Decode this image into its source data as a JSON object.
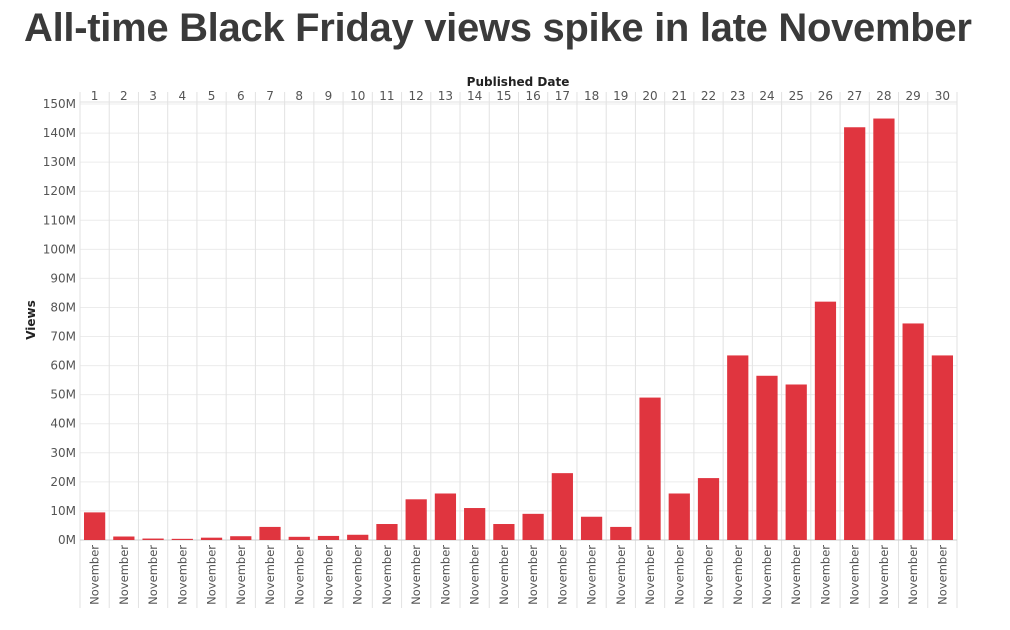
{
  "chart_data": {
    "type": "bar",
    "title": "All-time Black Friday views spike in late November",
    "xlabel": "Published Date",
    "ylabel": "Views",
    "x_header_labels": [
      "1",
      "2",
      "3",
      "4",
      "5",
      "6",
      "7",
      "8",
      "9",
      "10",
      "11",
      "12",
      "13",
      "14",
      "15",
      "16",
      "17",
      "18",
      "19",
      "20",
      "21",
      "22",
      "23",
      "24",
      "25",
      "26",
      "27",
      "28",
      "29",
      "30"
    ],
    "category_labels": [
      "November",
      "November",
      "November",
      "November",
      "November",
      "November",
      "November",
      "November",
      "November",
      "November",
      "November",
      "November",
      "November",
      "November",
      "November",
      "November",
      "November",
      "November",
      "November",
      "November",
      "November",
      "November",
      "November",
      "November",
      "November",
      "November",
      "November",
      "November",
      "November",
      "November"
    ],
    "values": [
      9.5,
      1.2,
      0.5,
      0.4,
      0.8,
      1.3,
      4.5,
      1.1,
      1.4,
      1.8,
      5.5,
      14,
      16,
      11,
      5.5,
      9,
      23,
      8,
      4.5,
      49,
      16,
      21.3,
      63.5,
      56.5,
      53.5,
      82,
      142,
      145,
      74.5,
      63.5
    ],
    "value_unit": "M",
    "y_ticks": [
      "0M",
      "10M",
      "20M",
      "30M",
      "40M",
      "50M",
      "60M",
      "70M",
      "80M",
      "90M",
      "100M",
      "110M",
      "120M",
      "130M",
      "140M",
      "150M"
    ],
    "ylim": [
      0,
      150
    ],
    "grid": true,
    "bar_color": "#e0353f"
  }
}
